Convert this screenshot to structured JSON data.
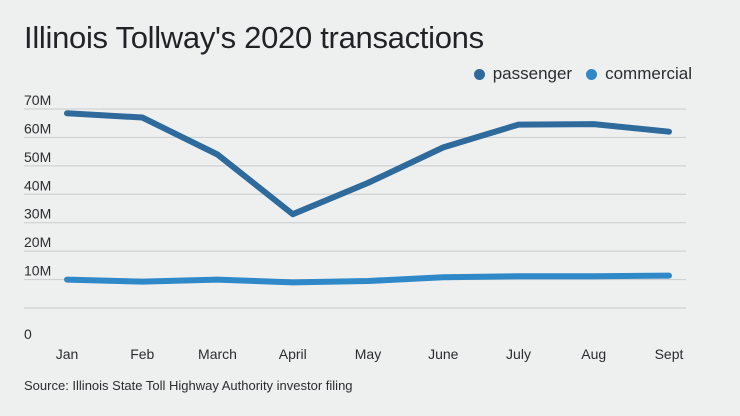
{
  "chart_data": {
    "type": "line",
    "title": "Illinois Tollway's 2020 transactions",
    "source": "Source: Illinois State Toll Highway Authority investor filing",
    "categories": [
      "Jan",
      "Feb",
      "March",
      "April",
      "May",
      "June",
      "July",
      "Aug",
      "Sept"
    ],
    "series": [
      {
        "name": "passenger",
        "color": "#2e6a9c",
        "values": [
          68.5,
          67,
          54,
          33,
          44,
          56.5,
          64.5,
          64.7,
          62
        ]
      },
      {
        "name": "commercial",
        "color": "#2f88c8",
        "values": [
          10,
          9.3,
          10,
          9,
          9.5,
          10.8,
          11.2,
          11.2,
          11.4
        ]
      }
    ],
    "yticks": [
      "0",
      "10M",
      "20M",
      "30M",
      "40M",
      "50M",
      "60M",
      "70M"
    ],
    "ylim": [
      0,
      70
    ],
    "legend": "top-right",
    "grid": true
  }
}
